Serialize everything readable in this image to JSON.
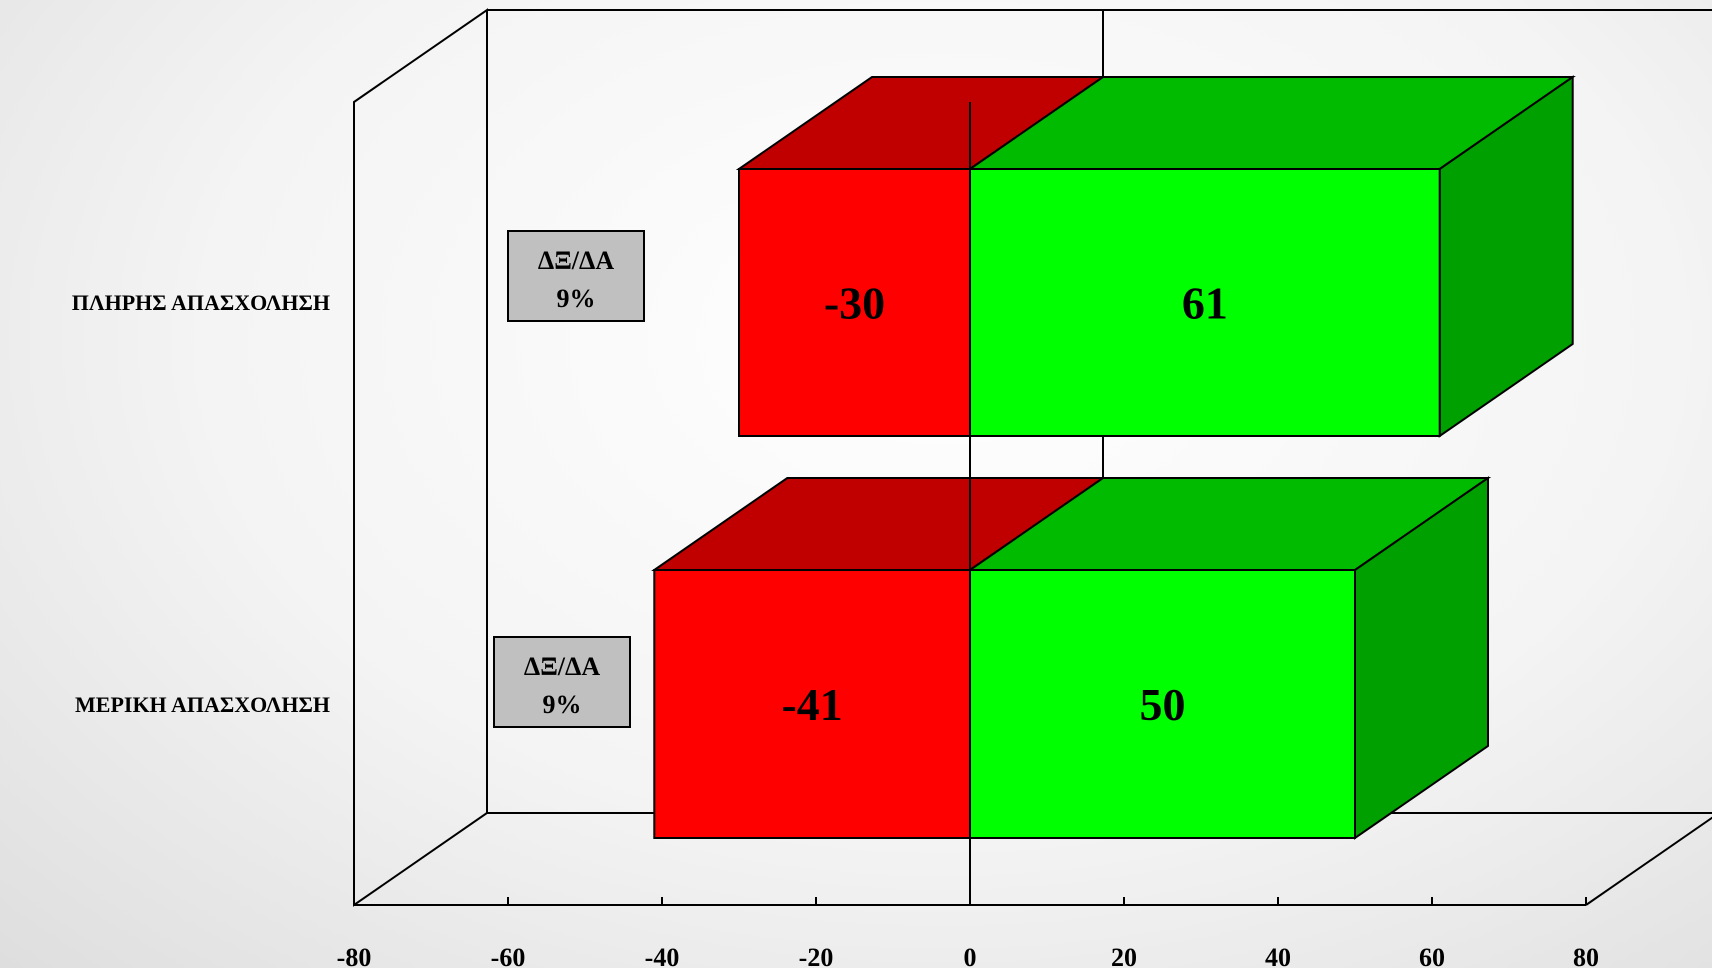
{
  "chart_data": {
    "type": "bar",
    "orientation": "horizontal",
    "stacked": true,
    "three_d": true,
    "categories": [
      "ΠΛΗΡΗΣ ΑΠΑΣΧΟΛΗΣΗ",
      "ΜΕΡΙΚΗ ΑΠΑΣΧΟΛΗΣΗ"
    ],
    "series": [
      {
        "values": [
          -30,
          -41
        ],
        "color": "#ff0000"
      },
      {
        "values": [
          61,
          50
        ],
        "color": "#00ff00"
      }
    ],
    "side_boxes": [
      {
        "line1": "ΔΞ/ΔΑ",
        "line2": "9%"
      },
      {
        "line1": "ΔΞ/ΔΑ",
        "line2": "9%"
      }
    ],
    "xlim": [
      -80,
      80
    ],
    "xticks": [
      -80,
      -60,
      -40,
      -20,
      0,
      20,
      40,
      60,
      80
    ],
    "tick_labels": [
      "-80",
      "-60",
      "-40",
      "-20",
      "0",
      "20",
      "40",
      "60",
      "80"
    ],
    "colors": {
      "negative_front": "#ff0000",
      "negative_top": "#c00000",
      "positive_front": "#00ff00",
      "positive_top": "#00bb00",
      "positive_side": "#00a000",
      "box_fill": "#c0c0c0"
    }
  }
}
